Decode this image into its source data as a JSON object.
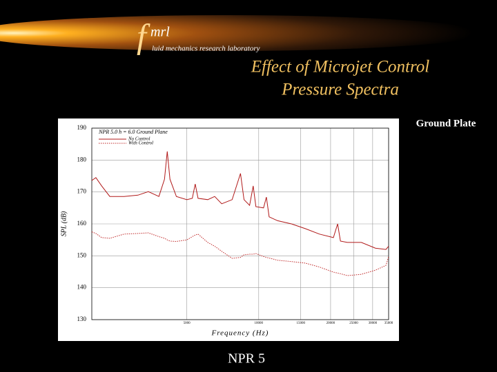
{
  "slide": {
    "logo_f": "f",
    "logo_mrl": "mrl",
    "logo_subtitle": "luid mechanics research laboratory",
    "title_line1": "Effect of Microjet Control",
    "title_line2": "Pressure Spectra",
    "side_label": "Ground Plate",
    "footer": "NPR 5"
  },
  "chart_data": {
    "type": "line",
    "annotation": "NPR 5.0   h = 6.0   Ground Plane",
    "x_label": "Frequency (Hz)",
    "y_label": "SPL (dB)",
    "xscale": "log",
    "grid": true,
    "xlim": [
      2000,
      35000
    ],
    "ylim": [
      130,
      190
    ],
    "xticks": [
      5000,
      10000,
      15000,
      20000,
      25000,
      30000,
      35000
    ],
    "yticks": [
      130,
      140,
      150,
      160,
      170,
      180,
      190
    ],
    "x": [
      2000,
      2080,
      2200,
      2380,
      2730,
      3120,
      3450,
      3820,
      4030,
      4140,
      4250,
      4520,
      5000,
      5270,
      5420,
      5570,
      6120,
      6540,
      7000,
      7740,
      8390,
      8680,
      9160,
      9480,
      9730,
      10480,
      10770,
      11060,
      12000,
      13710,
      15700,
      17960,
      20550,
      21400,
      22000,
      23500,
      26900,
      30800,
      34100,
      35000
    ],
    "series": [
      {
        "name": "No Control",
        "color": "#b01818",
        "style": "solid",
        "values": [
          173.6,
          174.5,
          171.9,
          168.6,
          168.6,
          169,
          170.1,
          168.6,
          174,
          182.7,
          174,
          168.6,
          167.6,
          168,
          172.5,
          168,
          167.6,
          168.6,
          166.3,
          167.6,
          175.8,
          167.6,
          165.8,
          171.9,
          165.4,
          165,
          168.4,
          162.2,
          161,
          160,
          158.5,
          156.8,
          155.7,
          160,
          154.6,
          154.2,
          154.2,
          152.4,
          152,
          153
        ]
      },
      {
        "name": "With Control",
        "color": "#c02828",
        "style": "dotted",
        "values": [
          157.5,
          157,
          155.7,
          155.5,
          156.8,
          157,
          157.2,
          156,
          155.5,
          155,
          154.6,
          154.5,
          155,
          156,
          156.5,
          156.8,
          154.2,
          153,
          151.4,
          149.2,
          149.5,
          150.3,
          150.5,
          150.5,
          150.7,
          149.8,
          149.5,
          149.3,
          148.6,
          148.2,
          147.7,
          146.5,
          144.9,
          144.6,
          144.4,
          143.8,
          144.2,
          145.5,
          147,
          149.8
        ]
      }
    ]
  }
}
